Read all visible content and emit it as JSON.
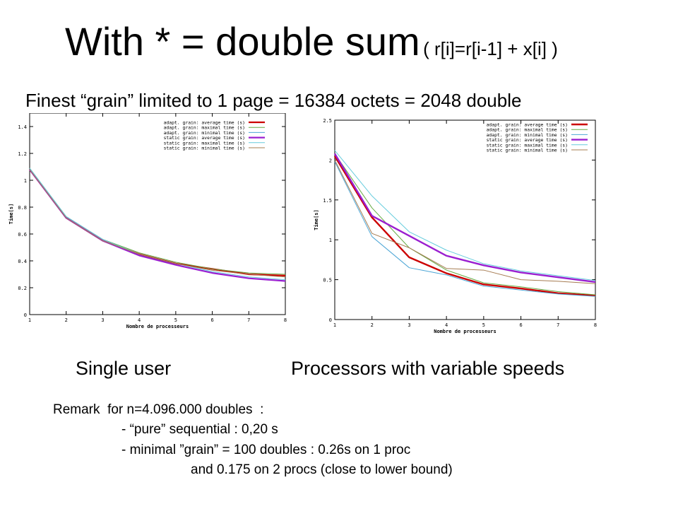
{
  "title": {
    "main": "With *  = double sum",
    "sub": "( r[i]=r[i-1] + x[i] )"
  },
  "subtitle": "Finest “grain” limited to 1 page = 16384 octets = 2048 double",
  "captions": {
    "left": "Single user",
    "right": "Processors with variable speeds"
  },
  "remark": {
    "line1": "Remark  for n=4.096.000 doubles  :",
    "line2": "- “pure” sequential : 0,20 s",
    "line3": "- minimal ”grain” = 100 doubles : 0.26s on 1 proc",
    "line4": "and 0.175 on 2 procs (close to lower bound)"
  },
  "chart_data": [
    {
      "type": "line",
      "xlabel": "Nombre de processeurs",
      "ylabel": "Time[s]",
      "xlim": [
        1,
        8
      ],
      "ylim": [
        0,
        1.5
      ],
      "x": [
        1,
        2,
        3,
        4,
        5,
        6,
        7,
        8
      ],
      "x_ticks": [
        "1",
        "2",
        "3",
        "4",
        "5",
        "6",
        "7",
        "8"
      ],
      "y_ticks": [
        0,
        0.2,
        0.4,
        0.6,
        0.8,
        1,
        1.2,
        1.4
      ],
      "y_tick_labels": [
        "0",
        "0.2",
        "0.4",
        "0.6",
        "0.8",
        "1",
        "1.2",
        "1.4"
      ],
      "grid": false,
      "legend": "top-right",
      "series": [
        {
          "name": "adapt. grain: average time (s)",
          "color": "#cc0000",
          "width": 2.2,
          "values": [
            1.08,
            0.72,
            0.55,
            0.45,
            0.38,
            0.34,
            0.3,
            0.29
          ]
        },
        {
          "name": "adapt. grain: maximal time (s)",
          "color": "#66aa44",
          "width": 1,
          "values": [
            1.09,
            0.73,
            0.56,
            0.46,
            0.39,
            0.34,
            0.31,
            0.3
          ]
        },
        {
          "name": "adapt. grain: minimal time (s)",
          "color": "#4da6d6",
          "width": 1,
          "values": [
            1.08,
            0.72,
            0.55,
            0.44,
            0.37,
            0.31,
            0.27,
            0.25
          ]
        },
        {
          "name": "static grain: average time (s)",
          "color": "#9a1fd0",
          "width": 2.2,
          "values": [
            1.08,
            0.72,
            0.55,
            0.44,
            0.37,
            0.31,
            0.27,
            0.25
          ]
        },
        {
          "name": "static grain: maximal time (s)",
          "color": "#66ccdd",
          "width": 1,
          "values": [
            1.09,
            0.73,
            0.56,
            0.45,
            0.38,
            0.32,
            0.28,
            0.26
          ]
        },
        {
          "name": "static grain: minimal time (s)",
          "color": "#a67c52",
          "width": 1,
          "values": [
            1.08,
            0.72,
            0.55,
            0.45,
            0.38,
            0.33,
            0.3,
            0.28
          ]
        }
      ]
    },
    {
      "type": "line",
      "xlabel": "Nombre de processeurs",
      "ylabel": "Time[s]",
      "xlim": [
        1,
        8
      ],
      "ylim": [
        0,
        2.5
      ],
      "x": [
        1,
        2,
        3,
        4,
        5,
        6,
        7,
        8
      ],
      "x_ticks": [
        "1",
        "2",
        "3",
        "4",
        "5",
        "6",
        "7",
        "8"
      ],
      "y_ticks": [
        0,
        0.5,
        1,
        1.5,
        2,
        2.5
      ],
      "y_tick_labels": [
        "0",
        "0.5",
        "1",
        "1.5",
        "2",
        "2.5"
      ],
      "grid": false,
      "legend": "top-right",
      "series": [
        {
          "name": "adapt. grain: average time (s)",
          "color": "#cc0000",
          "width": 2.4,
          "values": [
            2.05,
            1.28,
            0.78,
            0.58,
            0.44,
            0.39,
            0.33,
            0.3
          ]
        },
        {
          "name": "adapt. grain: maximal time (s)",
          "color": "#66aa44",
          "width": 1,
          "values": [
            2.08,
            1.4,
            0.9,
            0.62,
            0.46,
            0.41,
            0.35,
            0.31
          ]
        },
        {
          "name": "adapt. grain: minimal time (s)",
          "color": "#4da6d6",
          "width": 1,
          "values": [
            1.98,
            1.04,
            0.65,
            0.56,
            0.42,
            0.37,
            0.32,
            0.29
          ]
        },
        {
          "name": "static grain: average time (s)",
          "color": "#9a1fd0",
          "width": 2.4,
          "values": [
            2.08,
            1.3,
            1.05,
            0.8,
            0.68,
            0.59,
            0.53,
            0.47
          ]
        },
        {
          "name": "static grain: maximal time (s)",
          "color": "#66ccdd",
          "width": 1,
          "values": [
            2.12,
            1.55,
            1.1,
            0.87,
            0.7,
            0.61,
            0.55,
            0.49
          ]
        },
        {
          "name": "static grain: minimal time (s)",
          "color": "#a67c52",
          "width": 1,
          "values": [
            2.0,
            1.08,
            0.9,
            0.64,
            0.62,
            0.5,
            0.48,
            0.45
          ]
        }
      ]
    }
  ]
}
